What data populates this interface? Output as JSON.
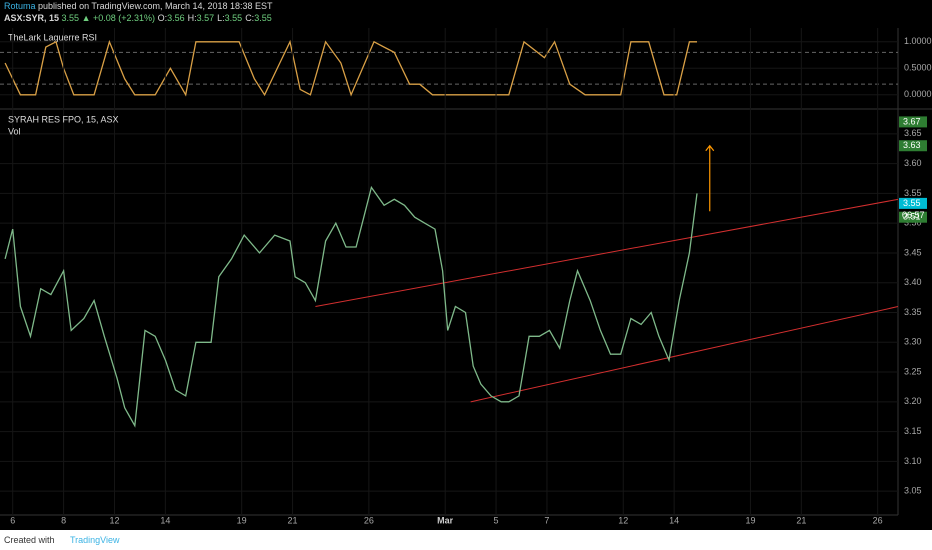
{
  "header": {
    "author": "Rotuma",
    "published": "published on TradingView.com, March 14, 2018 18:38 EST",
    "symbol": "ASX:SYR, 15",
    "last": "3.55",
    "change": "▲ +0.08 (+2.31%)",
    "ohlc": [
      {
        "label": "O:",
        "value": "3.56"
      },
      {
        "label": "H:",
        "value": "3.57"
      },
      {
        "label": "L:",
        "value": "3.55"
      },
      {
        "label": "C:",
        "value": "3.55"
      }
    ]
  },
  "footer": {
    "created": "Created with",
    "brand": "TradingView"
  },
  "chart_data": [
    {
      "type": "line",
      "title": "TheLark Laguerre RSI",
      "color": "#d9a046",
      "x": [
        -0.3,
        0.3,
        0.9,
        1.3,
        1.7,
        2.0,
        2.4,
        3.2,
        3.8,
        4.4,
        4.8,
        5.6,
        6.2,
        6.8,
        7.2,
        8.9,
        9.5,
        9.9,
        10.5,
        10.9,
        11.3,
        11.7,
        12.3,
        12.9,
        13.3,
        14.2,
        15.0,
        15.6,
        16.0,
        16.5,
        18.0,
        18.8,
        19.5,
        20.1,
        20.9,
        21.3,
        21.9,
        22.5,
        23.9,
        24.3,
        25.0,
        25.6,
        26.1,
        26.6,
        26.9
      ],
      "values": [
        0.6,
        0.0,
        0.0,
        0.9,
        1.0,
        0.5,
        0.0,
        0.0,
        1.0,
        0.3,
        0.0,
        0.0,
        0.5,
        0.0,
        1.0,
        1.0,
        0.3,
        0.0,
        0.6,
        1.0,
        0.1,
        0.0,
        1.0,
        0.6,
        0.0,
        1.0,
        0.8,
        0.2,
        0.2,
        0.0,
        0.0,
        0.0,
        0.0,
        1.0,
        0.7,
        1.0,
        0.2,
        0.0,
        0.0,
        1.0,
        1.0,
        0.0,
        0.0,
        1.0,
        1.0
      ],
      "xlim": [
        -0.5,
        34.8
      ],
      "ylim": [
        -0.25,
        1.26
      ],
      "yticks": [
        {
          "value": 1,
          "label": "1.0000"
        },
        {
          "value": 0.5,
          "label": "0.5000"
        },
        {
          "value": 0,
          "label": "0.0000"
        }
      ],
      "levels": [
        0.8,
        0.2
      ]
    },
    {
      "type": "line",
      "title": "SYRAH RES FPO, 15, ASX",
      "subtitle": "Vol",
      "color": "#7fb98a",
      "x": [
        -0.3,
        0,
        0.3,
        0.7,
        1.1,
        1.5,
        2.0,
        2.3,
        2.8,
        3.2,
        3.6,
        4.1,
        4.4,
        4.8,
        5.2,
        5.6,
        6.0,
        6.4,
        6.8,
        7.2,
        7.8,
        8.1,
        8.6,
        9.1,
        9.7,
        10.3,
        10.9,
        11.1,
        11.5,
        11.9,
        12.3,
        12.7,
        13.1,
        13.5,
        13.8,
        14.1,
        14.6,
        15.0,
        15.4,
        15.8,
        16.2,
        16.6,
        16.9,
        17.1,
        17.4,
        17.8,
        18.1,
        18.4,
        18.8,
        19.2,
        19.5,
        19.9,
        20.3,
        20.7,
        21.1,
        21.5,
        21.9,
        22.2,
        22.7,
        23.1,
        23.5,
        23.9,
        24.3,
        24.7,
        25.1,
        25.4,
        25.8,
        26.2,
        26.6,
        26.9
      ],
      "values": [
        3.44,
        3.49,
        3.36,
        3.31,
        3.39,
        3.38,
        3.42,
        3.32,
        3.34,
        3.37,
        3.31,
        3.24,
        3.19,
        3.16,
        3.32,
        3.31,
        3.27,
        3.22,
        3.21,
        3.3,
        3.3,
        3.41,
        3.44,
        3.48,
        3.45,
        3.48,
        3.47,
        3.41,
        3.4,
        3.37,
        3.47,
        3.5,
        3.46,
        3.46,
        3.51,
        3.56,
        3.53,
        3.54,
        3.53,
        3.51,
        3.5,
        3.49,
        3.42,
        3.32,
        3.36,
        3.35,
        3.26,
        3.23,
        3.21,
        3.2,
        3.2,
        3.21,
        3.31,
        3.31,
        3.32,
        3.29,
        3.37,
        3.42,
        3.37,
        3.32,
        3.28,
        3.28,
        3.34,
        3.33,
        3.35,
        3.31,
        3.27,
        3.37,
        3.45,
        3.55
      ],
      "xlim": [
        -0.5,
        34.8
      ],
      "ylim": [
        3.01,
        3.69
      ],
      "yticks": [
        3.05,
        {
          "value": 3.1,
          "label": "3.10"
        },
        3.15,
        {
          "value": 3.2,
          "label": "3.20"
        },
        3.25,
        {
          "value": 3.3,
          "label": "3.30"
        },
        3.35,
        {
          "value": 3.4,
          "label": "3.40"
        },
        3.45,
        {
          "value": 3.5,
          "label": "3.50"
        },
        3.55,
        {
          "value": 3.6,
          "label": "3.60"
        },
        3.65
      ],
      "xticks": [
        {
          "value": 0,
          "label": "6"
        },
        {
          "value": 2,
          "label": "8"
        },
        {
          "value": 4,
          "label": "12"
        },
        {
          "value": 6,
          "label": "14"
        },
        {
          "value": 9,
          "label": "19"
        },
        {
          "value": 11,
          "label": "21"
        },
        {
          "value": 14,
          "label": "26"
        },
        {
          "value": 17,
          "label": "Mar"
        },
        {
          "value": 19,
          "label": "5"
        },
        {
          "value": 21,
          "label": "7"
        },
        {
          "value": 24,
          "label": "12"
        },
        {
          "value": 26,
          "label": "14"
        },
        {
          "value": 29,
          "label": "19"
        },
        {
          "value": 31,
          "label": "21"
        },
        {
          "value": 34,
          "label": "26"
        }
      ],
      "price_labels": [
        3.67,
        3.63,
        3.51
      ],
      "last_price": 3.55,
      "countdown": "06:57",
      "trendlines": [
        {
          "x": [
            11.9,
            34.8
          ],
          "y": [
            3.36,
            3.54
          ],
          "color": "#d32f2f"
        },
        {
          "x": [
            18.0,
            34.8
          ],
          "y": [
            3.2,
            3.36
          ],
          "color": "#d32f2f"
        }
      ],
      "arrow": {
        "x": 27.4,
        "y": [
          3.52,
          3.63
        ],
        "color": "#ff9800"
      }
    }
  ]
}
